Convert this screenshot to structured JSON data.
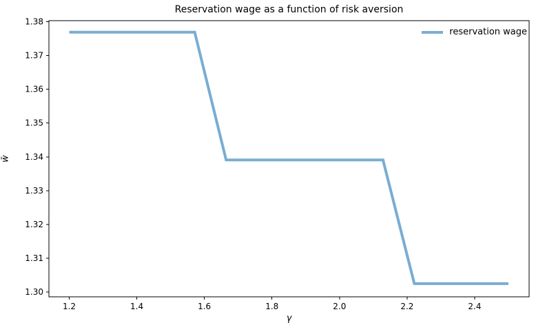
{
  "chart_data": {
    "type": "line",
    "title": "Reservation wage as a function of risk aversion",
    "xlabel": "γ",
    "ylabel": "w̄",
    "xlim": [
      1.1398,
      2.5612
    ],
    "ylim": [
      1.2986,
      1.3803
    ],
    "grid": false,
    "legend_position": "upper right",
    "x_ticks": [
      {
        "v": 1.2,
        "label": "1.2"
      },
      {
        "v": 1.4,
        "label": "1.4"
      },
      {
        "v": 1.6,
        "label": "1.6"
      },
      {
        "v": 1.8,
        "label": "1.8"
      },
      {
        "v": 2.0,
        "label": "2.0"
      },
      {
        "v": 2.2,
        "label": "2.2"
      },
      {
        "v": 2.4,
        "label": "2.4"
      }
    ],
    "y_ticks": [
      {
        "v": 1.3,
        "label": "1.30"
      },
      {
        "v": 1.31,
        "label": "1.31"
      },
      {
        "v": 1.32,
        "label": "1.32"
      },
      {
        "v": 1.33,
        "label": "1.33"
      },
      {
        "v": 1.34,
        "label": "1.34"
      },
      {
        "v": 1.35,
        "label": "1.35"
      },
      {
        "v": 1.36,
        "label": "1.36"
      },
      {
        "v": 1.37,
        "label": "1.37"
      },
      {
        "v": 1.38,
        "label": "1.38"
      }
    ],
    "series": [
      {
        "name": "reservation wage",
        "color": "#79add2",
        "line_width": 4,
        "x": [
          1.2,
          1.2929,
          1.3857,
          1.4786,
          1.5714,
          1.6643,
          1.7571,
          1.85,
          1.9429,
          2.0357,
          2.1286,
          2.2214,
          2.3143,
          2.4071,
          2.5
        ],
        "y": [
          1.3769,
          1.3769,
          1.3769,
          1.3769,
          1.3769,
          1.3391,
          1.3391,
          1.3391,
          1.3391,
          1.3391,
          1.3391,
          1.3025,
          1.3025,
          1.3025,
          1.3025
        ]
      }
    ]
  }
}
